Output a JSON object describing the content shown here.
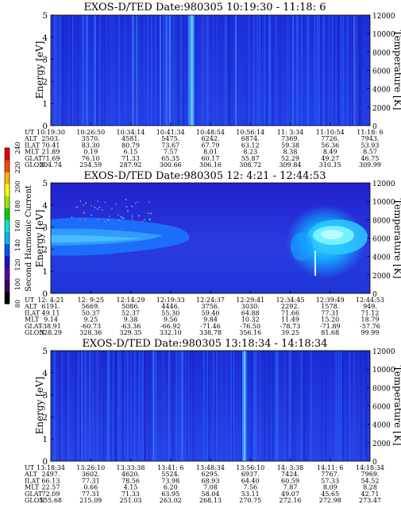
{
  "colorbar": {
    "title": "Second Harmonic Current",
    "ticks": [
      "80",
      "100",
      "120",
      "140",
      "160",
      "180",
      "200",
      "220",
      "240"
    ],
    "colors": [
      "#000000",
      "#3a005a",
      "#5a00a0",
      "#1414c8",
      "#0a50ff",
      "#00b4ff",
      "#00e6d2",
      "#00d200",
      "#a0e600",
      "#ffff00",
      "#ffb400",
      "#ff4600",
      "#e60000"
    ]
  },
  "chart_data": [
    {
      "type": "heatmap",
      "title": "EXOS-D/TED   Date:980305  10:19:30 - 11:18: 6",
      "ylabel": "Energy [eV]",
      "y2label": "Temperature [K]",
      "ylim": [
        0,
        5
      ],
      "y2lim": [
        0,
        12000
      ],
      "yticks": [
        "0",
        "1",
        "2",
        "3",
        "4",
        "5"
      ],
      "y2ticks": [
        "0",
        "2000",
        "4000",
        "6000",
        "8000",
        "10000",
        "12000"
      ],
      "table": {
        "labels": [
          "UT",
          "ALT",
          "ILAT",
          "MLT",
          "GLAT",
          "GLON"
        ],
        "columns": [
          [
            "10:19:30",
            "2503.",
            "70.41",
            "21.89",
            "71.69",
            "204.74"
          ],
          [
            "10:26:50",
            "3570.",
            "83.30",
            "0.19",
            "76.10",
            "254.59"
          ],
          [
            "10:34:14",
            "4581.",
            "80.79",
            "6.15",
            "71.33",
            "287.92"
          ],
          [
            "10:41:34",
            "5475.",
            "73.67",
            "7.57",
            "65.35",
            "300.66"
          ],
          [
            "10:48:54",
            "6242.",
            "67.79",
            "8.01",
            "60.17",
            "306.16"
          ],
          [
            "10:56:14",
            "6874.",
            "63.12",
            "8.23",
            "55.87",
            "308.72"
          ],
          [
            "11: 3:34",
            "7369.",
            "59.38",
            "8.38",
            "52.29",
            "309.84"
          ],
          [
            "11:10:54",
            "7726.",
            "56.36",
            "8.49",
            "49.27",
            "310.15"
          ],
          [
            "11:18: 6",
            "7943.",
            "53.93",
            "8.57",
            "46.75",
            "309.99"
          ]
        ]
      }
    },
    {
      "type": "heatmap",
      "title": "EXOS-D/TED   Date:980305  12: 4:21 - 12:44:53",
      "ylabel": "Energy [eV]",
      "y2label": "Temperature [K]",
      "ylim": [
        0,
        5
      ],
      "y2lim": [
        0,
        12000
      ],
      "yticks": [
        "0",
        "1",
        "2",
        "3",
        "4",
        "5"
      ],
      "y2ticks": [
        "0",
        "2000",
        "4000",
        "6000",
        "8000",
        "10000",
        "12000"
      ],
      "table": {
        "labels": [
          "UT",
          "ALT",
          "ILAT",
          "MLT",
          "GLAT",
          "GLON"
        ],
        "columns": [
          [
            "12: 4:21",
            "6191.",
            "49.11",
            "9.14",
            "-38.91",
            "328.29"
          ],
          [
            "12: 9:25",
            "5669.",
            "50.37",
            "9.25",
            "-60.73",
            "328.36"
          ],
          [
            "12:14:29",
            "5086.",
            "52.37",
            "9.38",
            "-63.36",
            "329.35"
          ],
          [
            "12:19:33",
            "4446.",
            "55.30",
            "9.56",
            "-66.92",
            "332.10"
          ],
          [
            "12:24:37",
            "3756.",
            "59.40",
            "9.84",
            "-71.46",
            "338.78"
          ],
          [
            "12:29:41",
            "3030.",
            "64.88",
            "10.32",
            "-76.50",
            "356.16"
          ],
          [
            "12:34:45",
            "2292.",
            "71.66",
            "11.49",
            "-78.73",
            "39.25"
          ],
          [
            "12:39:49",
            "1578.",
            "77.31",
            "15.20",
            "-71.89",
            "81.68"
          ],
          [
            "12:44:53",
            "949.",
            "71.12",
            "18.79",
            "-57.76",
            "99.99"
          ]
        ]
      }
    },
    {
      "type": "heatmap",
      "title": "EXOS-D/TED   Date:980305  13:18:34 - 14:18:34",
      "ylabel": "Energy [eV]",
      "y2label": "Temperature [K]",
      "ylim": [
        0,
        5
      ],
      "y2lim": [
        0,
        12000
      ],
      "yticks": [
        "0",
        "1",
        "2",
        "3",
        "4",
        "5"
      ],
      "y2ticks": [
        "0",
        "2000",
        "4000",
        "6000",
        "8000",
        "10000",
        "12000"
      ],
      "table": {
        "labels": [
          "UT",
          "ALT",
          "ILAT",
          "MLT",
          "GLAT",
          "GLON"
        ],
        "columns": [
          [
            "13:18:34",
            "2497.",
            "66.13",
            "22.57",
            "72.09",
            "155.68"
          ],
          [
            "13:26:10",
            "3602.",
            "77.31",
            "0.66",
            "77.31",
            "215.09"
          ],
          [
            "13:33:38",
            "4620.",
            "78.56",
            "4.15",
            "71.33",
            "251.03"
          ],
          [
            "13:41: 6",
            "5524.",
            "73.98",
            "6.20",
            "63.95",
            "263.02"
          ],
          [
            "13:48:34",
            "6295.",
            "68.93",
            "7.08",
            "58.04",
            "268.13"
          ],
          [
            "13:56:10",
            "6937.",
            "64.40",
            "7.56",
            "53.11",
            "270.75"
          ],
          [
            "14: 3:38",
            "7424.",
            "60.59",
            "7.87",
            "49.07",
            "272.16"
          ],
          [
            "14:11: 6",
            "7767.",
            "57.33",
            "8.09",
            "45.65",
            "272.98"
          ],
          [
            "14:18:34",
            "7969.",
            "54.52",
            "8.28",
            "42.71",
            "273.47"
          ]
        ]
      }
    }
  ]
}
